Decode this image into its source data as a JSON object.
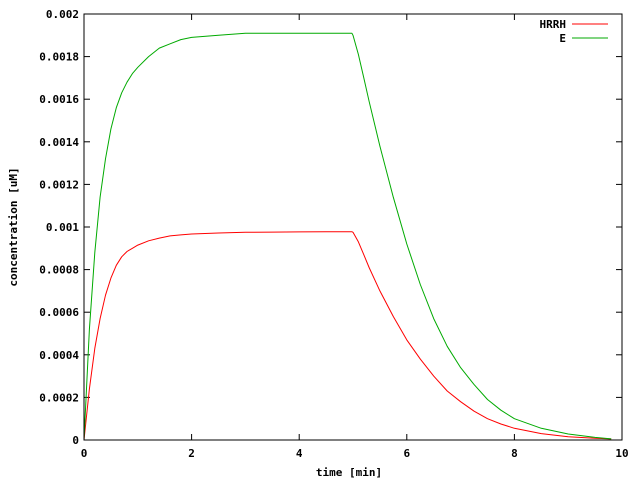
{
  "chart_data": {
    "type": "line",
    "xlabel": "time [min]",
    "ylabel": "concentration [uM]",
    "xlim": [
      0,
      10
    ],
    "ylim": [
      0,
      0.002
    ],
    "x_ticks": [
      "0",
      "2",
      "4",
      "6",
      "8",
      "10"
    ],
    "y_ticks": [
      "0",
      "0.0002",
      "0.0004",
      "0.0006",
      "0.0008",
      "0.001",
      "0.0012",
      "0.0014",
      "0.0016",
      "0.0018",
      "0.002"
    ],
    "grid": false,
    "legend_position": "top-right",
    "series": [
      {
        "name": "HRRH",
        "color": "#ff0000",
        "x": [
          0,
          0.1,
          0.2,
          0.3,
          0.4,
          0.5,
          0.6,
          0.7,
          0.8,
          0.9,
          1.0,
          1.2,
          1.4,
          1.6,
          1.8,
          2.0,
          2.5,
          3.0,
          3.5,
          4.0,
          4.5,
          4.98,
          5.0,
          5.1,
          5.2,
          5.3,
          5.5,
          5.75,
          6.0,
          6.25,
          6.5,
          6.75,
          7.0,
          7.25,
          7.5,
          7.75,
          8.0,
          8.5,
          9.0,
          9.5,
          9.8
        ],
        "y": [
          0,
          0.00024,
          0.00043,
          0.00057,
          0.00068,
          0.00076,
          0.00082,
          0.00086,
          0.000885,
          0.0009,
          0.000915,
          0.000935,
          0.000948,
          0.000958,
          0.000963,
          0.000967,
          0.000972,
          0.000975,
          0.000976,
          0.000977,
          0.000978,
          0.000978,
          0.000975,
          0.00093,
          0.00087,
          0.00081,
          0.0007,
          0.00058,
          0.00047,
          0.00038,
          0.0003,
          0.00023,
          0.00018,
          0.000135,
          0.0001,
          7.5e-05,
          5.5e-05,
          3e-05,
          1.5e-05,
          8e-06,
          5e-06
        ]
      },
      {
        "name": "E",
        "color": "#00aa00",
        "x": [
          0,
          0.1,
          0.2,
          0.3,
          0.4,
          0.5,
          0.6,
          0.7,
          0.8,
          0.9,
          1.0,
          1.2,
          1.4,
          1.6,
          1.8,
          2.0,
          2.5,
          3.0,
          3.5,
          4.0,
          4.5,
          4.98,
          5.0,
          5.1,
          5.2,
          5.3,
          5.5,
          5.75,
          6.0,
          6.25,
          6.5,
          6.75,
          7.0,
          7.25,
          7.5,
          7.75,
          8.0,
          8.5,
          9.0,
          9.5,
          9.8
        ],
        "y": [
          0,
          0.00052,
          0.00088,
          0.00114,
          0.00132,
          0.00146,
          0.00156,
          0.00163,
          0.00168,
          0.00172,
          0.00175,
          0.0018,
          0.00184,
          0.00186,
          0.00188,
          0.00189,
          0.0019,
          0.00191,
          0.00191,
          0.00191,
          0.00191,
          0.00191,
          0.0019,
          0.00181,
          0.0017,
          0.00159,
          0.00138,
          0.00114,
          0.00092,
          0.00073,
          0.00057,
          0.00044,
          0.00034,
          0.00026,
          0.00019,
          0.00014,
          0.0001,
          5.5e-05,
          2.8e-05,
          1.2e-05,
          5e-06
        ]
      }
    ]
  }
}
